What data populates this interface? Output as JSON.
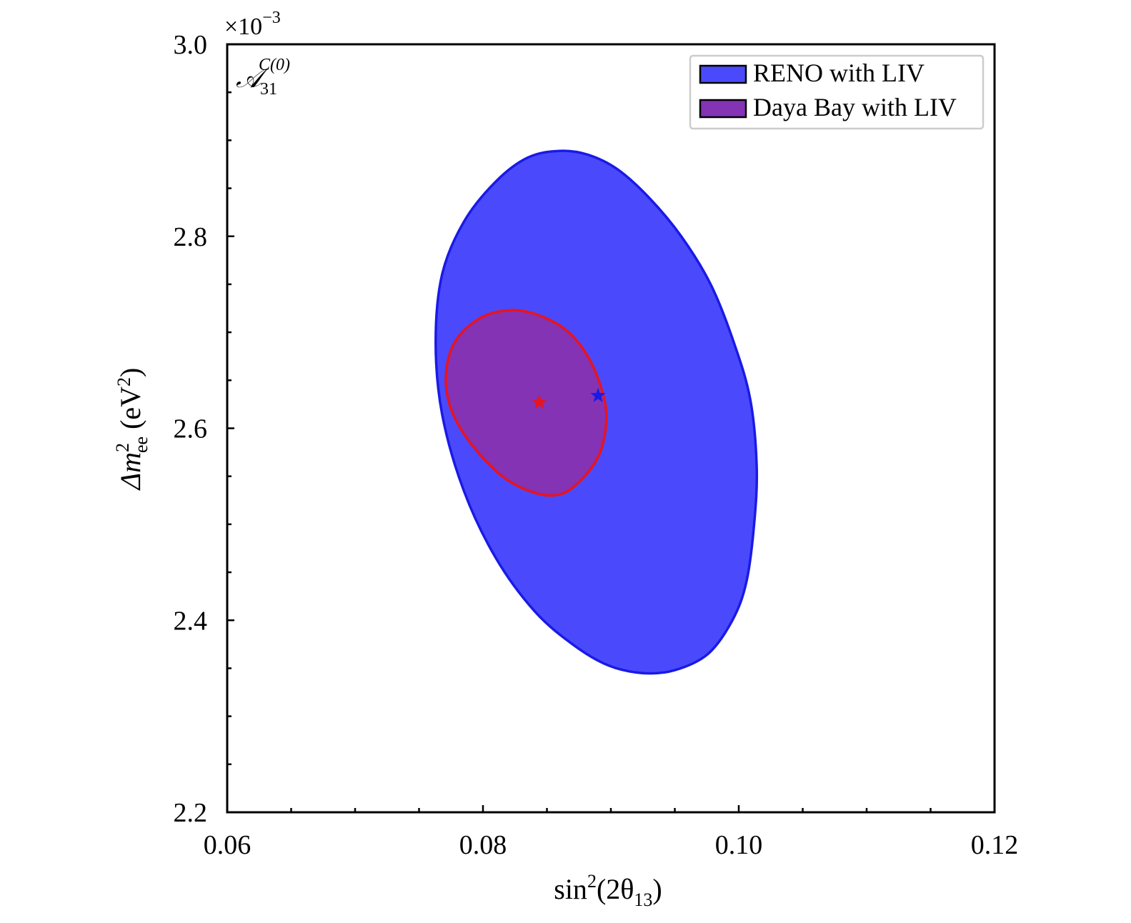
{
  "chart_data": {
    "type": "contour",
    "panel_label": {
      "base": "𝒜",
      "sub": "31",
      "sup": "C(0)"
    },
    "xlabel": {
      "pre": "sin",
      "sup": "2",
      "mid": "(2θ",
      "sub": "13",
      "post": ")"
    },
    "ylabel": {
      "pre": "Δm",
      "sup": "2",
      "sub": "ee",
      "post": " (eV",
      "unit_sup": "2",
      "end": ")"
    },
    "y_scale_label": {
      "base": "×10",
      "exp": "−3"
    },
    "xlim": [
      0.06,
      0.12
    ],
    "ylim": [
      2.2,
      3.0
    ],
    "x_ticks": [
      "0.06",
      "0.08",
      "0.10",
      "0.12"
    ],
    "y_ticks": [
      "2.2",
      "2.4",
      "2.6",
      "2.8",
      "3.0"
    ],
    "grid": false,
    "legend_position": "top-right",
    "series": [
      {
        "name": "RENO with LIV",
        "fill": "#4a4afc",
        "edge": "#1a1ae6",
        "best_fit": {
          "x": 0.089,
          "y": 2.634
        },
        "contour": [
          [
            0.086,
            2.889
          ],
          [
            0.0882,
            2.885
          ],
          [
            0.0905,
            2.87
          ],
          [
            0.093,
            2.84
          ],
          [
            0.0955,
            2.8
          ],
          [
            0.0978,
            2.75
          ],
          [
            0.0996,
            2.69
          ],
          [
            0.1009,
            2.63
          ],
          [
            0.1014,
            2.56
          ],
          [
            0.1012,
            2.5
          ],
          [
            0.1006,
            2.44
          ],
          [
            0.0995,
            2.4
          ],
          [
            0.0976,
            2.365
          ],
          [
            0.095,
            2.348
          ],
          [
            0.0925,
            2.345
          ],
          [
            0.0898,
            2.353
          ],
          [
            0.087,
            2.375
          ],
          [
            0.084,
            2.41
          ],
          [
            0.081,
            2.465
          ],
          [
            0.0785,
            2.535
          ],
          [
            0.0768,
            2.615
          ],
          [
            0.0763,
            2.69
          ],
          [
            0.0768,
            2.76
          ],
          [
            0.0785,
            2.815
          ],
          [
            0.081,
            2.857
          ],
          [
            0.0835,
            2.882
          ]
        ]
      },
      {
        "name": "Daya Bay with LIV",
        "fill": "#8333b4",
        "edge": "#e8141e",
        "best_fit": {
          "x": 0.0844,
          "y": 2.627
        },
        "contour": [
          [
            0.0822,
            2.723
          ],
          [
            0.0845,
            2.717
          ],
          [
            0.0867,
            2.7
          ],
          [
            0.0884,
            2.67
          ],
          [
            0.0895,
            2.63
          ],
          [
            0.0896,
            2.6
          ],
          [
            0.089,
            2.57
          ],
          [
            0.0876,
            2.545
          ],
          [
            0.086,
            2.531
          ],
          [
            0.084,
            2.533
          ],
          [
            0.0815,
            2.55
          ],
          [
            0.079,
            2.585
          ],
          [
            0.0775,
            2.62
          ],
          [
            0.0771,
            2.655
          ],
          [
            0.0778,
            2.69
          ],
          [
            0.0798,
            2.715
          ]
        ]
      }
    ]
  }
}
